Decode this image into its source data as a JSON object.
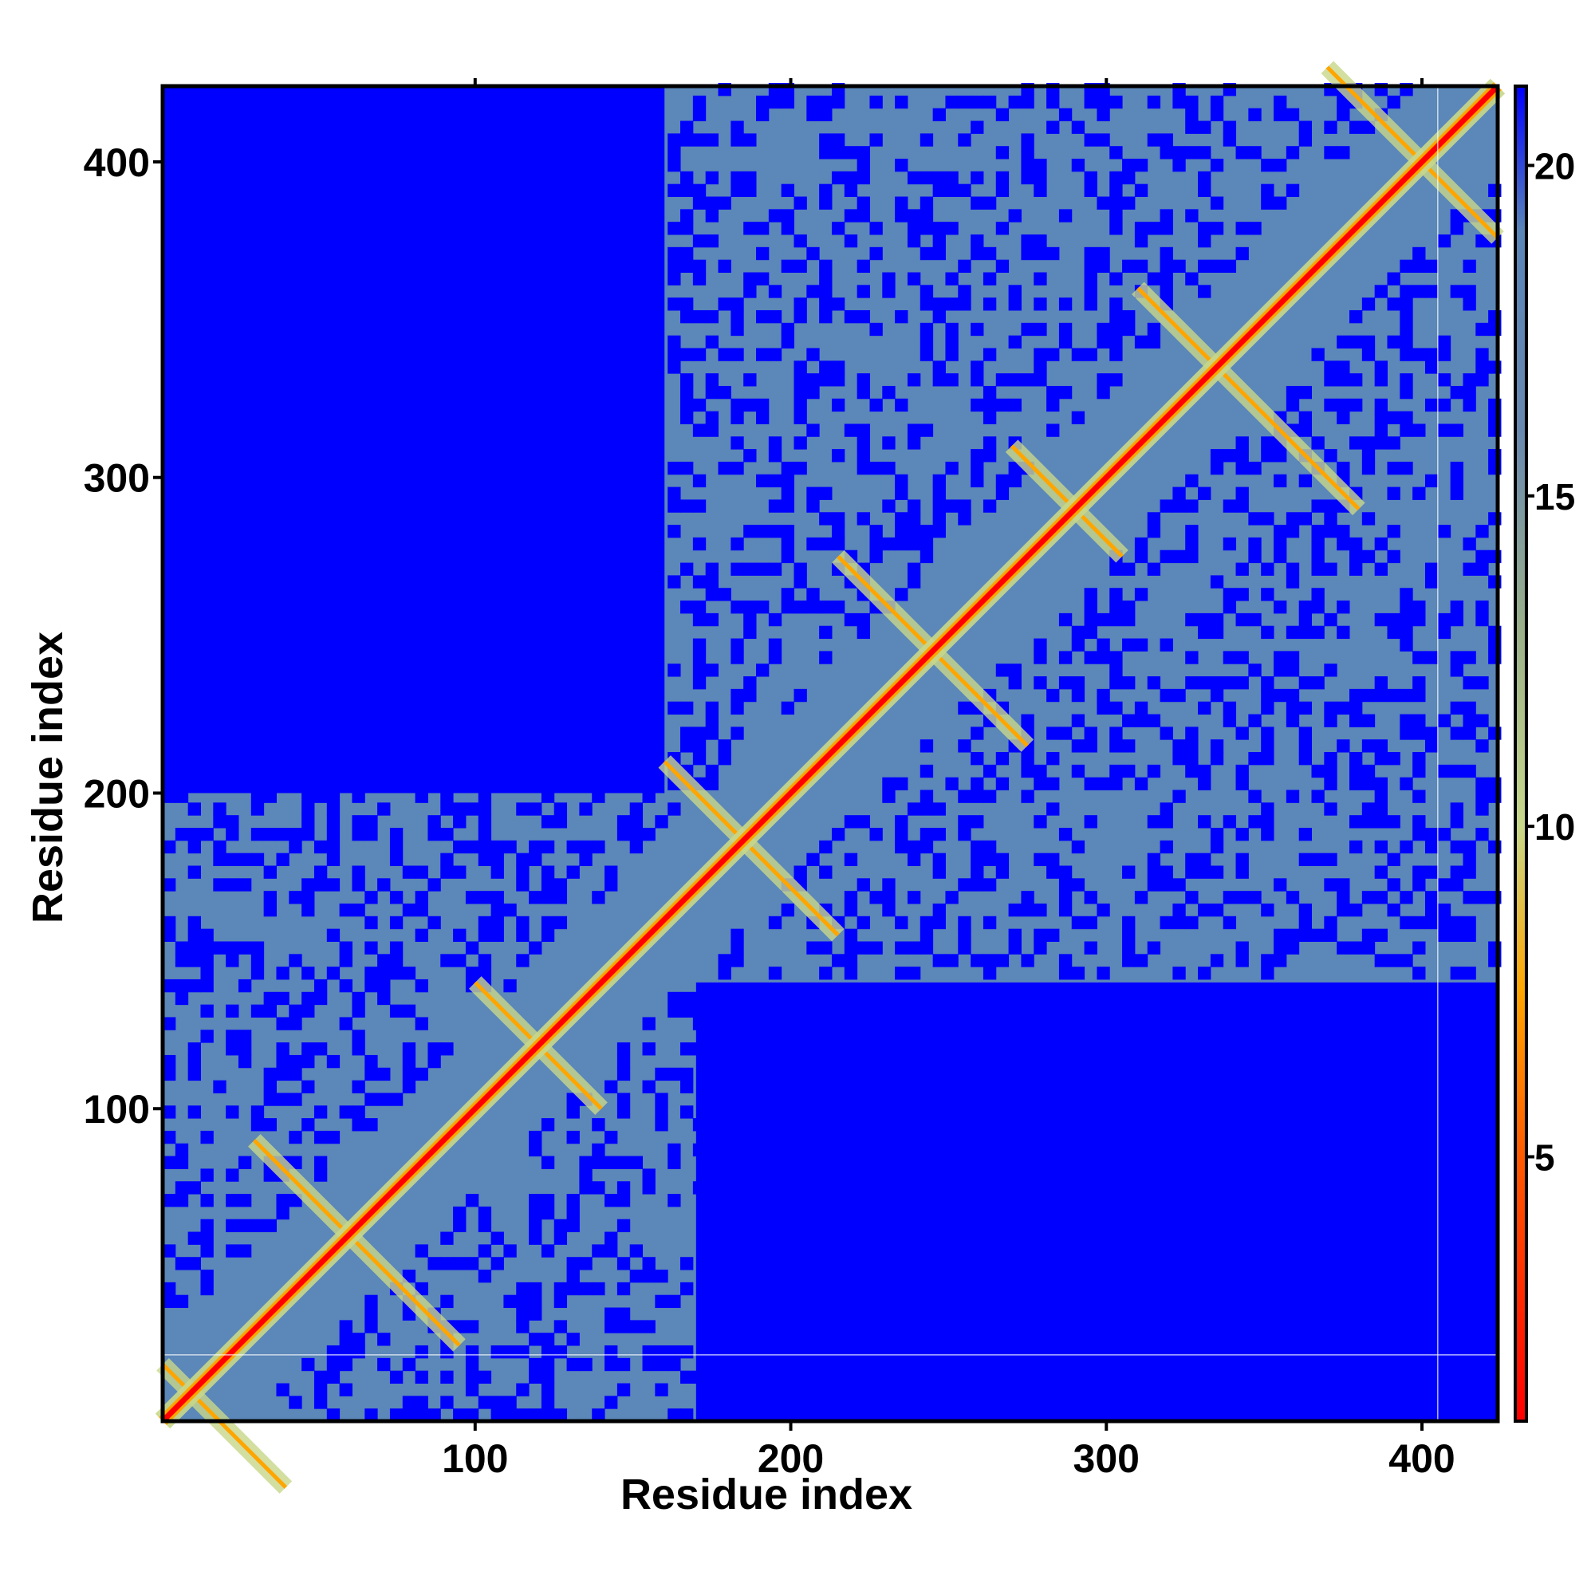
{
  "chart_data": {
    "type": "heatmap",
    "title": "",
    "xlabel": "Residue index",
    "ylabel": "Residue index",
    "xlim": [
      1,
      424
    ],
    "ylim": [
      1,
      424
    ],
    "x_ticks": [
      100,
      200,
      300,
      400
    ],
    "y_ticks": [
      100,
      200,
      300,
      400
    ],
    "colorbar": {
      "range": [
        1,
        21.2
      ],
      "ticks": [
        5,
        10,
        15,
        20
      ],
      "stops": [
        {
          "value": 1,
          "color": "#ff0000"
        },
        {
          "value": 5,
          "color": "#ff5a00"
        },
        {
          "value": 7.5,
          "color": "#ffa500"
        },
        {
          "value": 10,
          "color": "#c8d88a"
        },
        {
          "value": 13,
          "color": "#9ab08a"
        },
        {
          "value": 16,
          "color": "#6888b0"
        },
        {
          "value": 19,
          "color": "#5a86b8"
        },
        {
          "value": 21.2,
          "color": "#0000ff"
        }
      ]
    },
    "colors": {
      "near": "#ff0000",
      "orange": "#ffa500",
      "light": "#c8d88a",
      "mid": "#5b87b9",
      "far": "#0000ff"
    },
    "contact_lines": [
      {
        "center": 10,
        "range": [
          1,
          40
        ]
      },
      {
        "center": 60,
        "range": [
          30,
          95
        ]
      },
      {
        "center": 120,
        "range": [
          100,
          140
        ]
      },
      {
        "center": 185,
        "range": [
          160,
          215
        ]
      },
      {
        "center": 245,
        "range": [
          215,
          275
        ]
      },
      {
        "center": 290,
        "range": [
          270,
          305
        ]
      },
      {
        "center": 335,
        "range": [
          310,
          380
        ]
      },
      {
        "center": 400,
        "range": [
          370,
          424
        ]
      }
    ],
    "far_regions": [
      {
        "x": [
          170,
          424
        ],
        "y": [
          1,
          140
        ]
      },
      {
        "x": [
          1,
          160
        ],
        "y": [
          200,
          424
        ]
      }
    ]
  }
}
